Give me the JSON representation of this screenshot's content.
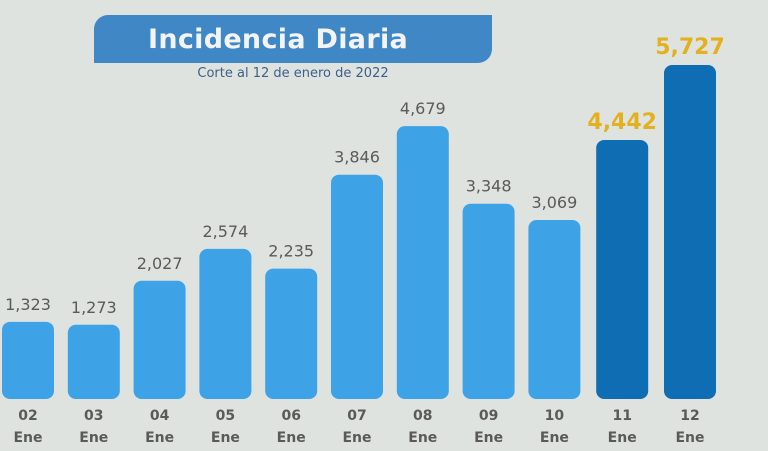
{
  "chart_data": {
    "type": "bar",
    "title": "Incidencia Diaria",
    "subtitle": "Corte al 12 de enero de 2022",
    "xlabel": "",
    "ylabel": "",
    "categories": [
      {
        "day": "02",
        "month": "Ene"
      },
      {
        "day": "03",
        "month": "Ene"
      },
      {
        "day": "04",
        "month": "Ene"
      },
      {
        "day": "05",
        "month": "Ene"
      },
      {
        "day": "06",
        "month": "Ene"
      },
      {
        "day": "07",
        "month": "Ene"
      },
      {
        "day": "08",
        "month": "Ene"
      },
      {
        "day": "09",
        "month": "Ene"
      },
      {
        "day": "10",
        "month": "Ene"
      },
      {
        "day": "11",
        "month": "Ene"
      },
      {
        "day": "12",
        "month": "Ene"
      }
    ],
    "values": [
      1323,
      1273,
      2027,
      2574,
      2235,
      3846,
      4679,
      3348,
      3069,
      4442,
      5727
    ],
    "value_labels": [
      "1,323",
      "1,273",
      "2,027",
      "2,574",
      "2,235",
      "3,846",
      "4,679",
      "3,348",
      "3,069",
      "4,442",
      "5,727"
    ],
    "highlighted": [
      false,
      false,
      false,
      false,
      false,
      false,
      false,
      false,
      false,
      true,
      true
    ],
    "ylim": [
      0,
      5727
    ],
    "grid": false,
    "legend": "none",
    "colors": {
      "bar": "#3ea2e6",
      "bar_highlight": "#0f6db3",
      "label": "#5a5a5a",
      "label_highlight": "#e3b020",
      "axis_label": "#5a5a5a",
      "title_bg": "#3f87c5"
    }
  }
}
